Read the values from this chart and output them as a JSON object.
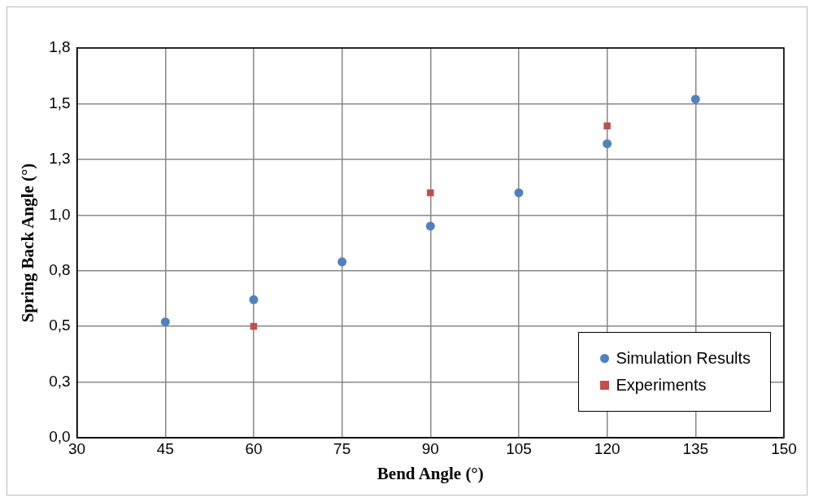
{
  "chart_data": {
    "type": "scatter",
    "xlabel": "Bend Angle (°)",
    "ylabel": "Spring Back Angle (°)",
    "xlim": [
      30,
      150
    ],
    "xticks": [
      30,
      45,
      60,
      75,
      90,
      105,
      120,
      135,
      150
    ],
    "ylim": [
      0,
      1.75
    ],
    "yticks": [
      {
        "value": 0,
        "label": "0,0"
      },
      {
        "value": 0.25,
        "label": "0,3"
      },
      {
        "value": 0.5,
        "label": "0,5"
      },
      {
        "value": 0.75,
        "label": "0,8"
      },
      {
        "value": 1,
        "label": "1,0"
      },
      {
        "value": 1.25,
        "label": "1,3"
      },
      {
        "value": 1.5,
        "label": "1,5"
      },
      {
        "value": 1.75,
        "label": "1,8"
      }
    ],
    "grid": true,
    "legend": "bottom right",
    "series": [
      {
        "name": "Simulation Results",
        "color": "#4f81bd",
        "marker": "circle",
        "x": [
          45,
          60,
          75,
          90,
          105,
          120,
          135
        ],
        "values": [
          0.52,
          0.62,
          0.79,
          0.95,
          1.1,
          1.32,
          1.52
        ]
      },
      {
        "name": "Experiments",
        "color": "#c0504d",
        "marker": "square",
        "x": [
          60,
          90,
          120
        ],
        "values": [
          0.5,
          1.1,
          1.4
        ]
      }
    ]
  }
}
